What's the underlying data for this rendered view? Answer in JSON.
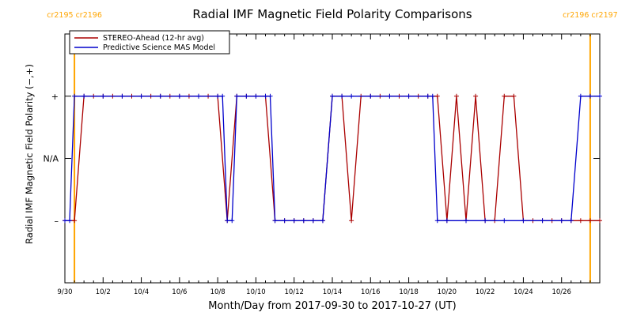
{
  "chart_data": {
    "type": "line",
    "title": "Radial IMF Magnetic Field Polarity Comparisons",
    "xlabel": "Month/Day from 2017-09-30 to 2017-10-27 (UT)",
    "ylabel": "Radial IMF Magnetic Field Polarity (−,+)",
    "xlim": [
      "2017-09-30T00:00",
      "2017-10-28T00:00"
    ],
    "ylim": [
      -2,
      2
    ],
    "grid": false,
    "legend_position": "top-left",
    "x_tick_labels": [
      "9/30",
      "10/2",
      "10/4",
      "10/6",
      "10/8",
      "10/10",
      "10/12",
      "10/14",
      "10/16",
      "10/18",
      "10/20",
      "10/22",
      "10/24",
      "10/26"
    ],
    "x_tick_dates": [
      "2017-09-30",
      "2017-10-02",
      "2017-10-04",
      "2017-10-06",
      "2017-10-08",
      "2017-10-10",
      "2017-10-12",
      "2017-10-14",
      "2017-10-16",
      "2017-10-18",
      "2017-10-20",
      "2017-10-22",
      "2017-10-24",
      "2017-10-26"
    ],
    "y_ticks": [
      {
        "value": 1,
        "label": "+"
      },
      {
        "value": 0,
        "label": "N/A"
      },
      {
        "value": -1,
        "label": "–"
      }
    ],
    "rotation_markers": [
      {
        "date": "2017-09-30T12:00",
        "labels": [
          "cr2195",
          "cr2196"
        ],
        "color": "#FFA500"
      },
      {
        "date": "2017-10-27T12:00",
        "labels": [
          "cr2196",
          "cr2197"
        ],
        "color": "#FFA500"
      }
    ],
    "series": [
      {
        "name": "STEREO-Ahead (12-hr avg)",
        "color": "#AA0000",
        "marker": "+",
        "points": [
          [
            "2017-09-30T00:00",
            -1
          ],
          [
            "2017-09-30T12:00",
            -1
          ],
          [
            "2017-10-01T00:00",
            1
          ],
          [
            "2017-10-01T12:00",
            1
          ],
          [
            "2017-10-02T00:00",
            1
          ],
          [
            "2017-10-02T12:00",
            1
          ],
          [
            "2017-10-03T00:00",
            1
          ],
          [
            "2017-10-03T12:00",
            1
          ],
          [
            "2017-10-04T00:00",
            1
          ],
          [
            "2017-10-04T12:00",
            1
          ],
          [
            "2017-10-05T00:00",
            1
          ],
          [
            "2017-10-05T12:00",
            1
          ],
          [
            "2017-10-06T00:00",
            1
          ],
          [
            "2017-10-06T12:00",
            1
          ],
          [
            "2017-10-07T00:00",
            1
          ],
          [
            "2017-10-07T12:00",
            1
          ],
          [
            "2017-10-08T00:00",
            1
          ],
          [
            "2017-10-08T12:00",
            -1
          ],
          [
            "2017-10-09T00:00",
            1
          ],
          [
            "2017-10-09T12:00",
            1
          ],
          [
            "2017-10-10T00:00",
            1
          ],
          [
            "2017-10-10T12:00",
            1
          ],
          [
            "2017-10-11T00:00",
            -1
          ],
          [
            "2017-10-11T12:00",
            -1
          ],
          [
            "2017-10-12T00:00",
            -1
          ],
          [
            "2017-10-12T12:00",
            -1
          ],
          [
            "2017-10-13T00:00",
            -1
          ],
          [
            "2017-10-13T12:00",
            -1
          ],
          [
            "2017-10-14T00:00",
            1
          ],
          [
            "2017-10-14T12:00",
            1
          ],
          [
            "2017-10-15T00:00",
            -1
          ],
          [
            "2017-10-15T12:00",
            1
          ],
          [
            "2017-10-16T00:00",
            1
          ],
          [
            "2017-10-16T12:00",
            1
          ],
          [
            "2017-10-17T00:00",
            1
          ],
          [
            "2017-10-17T12:00",
            1
          ],
          [
            "2017-10-18T00:00",
            1
          ],
          [
            "2017-10-18T12:00",
            1
          ],
          [
            "2017-10-19T00:00",
            1
          ],
          [
            "2017-10-19T12:00",
            1
          ],
          [
            "2017-10-20T00:00",
            -1
          ],
          [
            "2017-10-20T12:00",
            1
          ],
          [
            "2017-10-21T00:00",
            -1
          ],
          [
            "2017-10-21T12:00",
            1
          ],
          [
            "2017-10-22T00:00",
            -1
          ],
          [
            "2017-10-22T12:00",
            -1
          ],
          [
            "2017-10-23T00:00",
            1
          ],
          [
            "2017-10-23T12:00",
            1
          ],
          [
            "2017-10-24T00:00",
            -1
          ],
          [
            "2017-10-24T12:00",
            -1
          ],
          [
            "2017-10-25T00:00",
            -1
          ],
          [
            "2017-10-25T12:00",
            -1
          ],
          [
            "2017-10-26T00:00",
            -1
          ],
          [
            "2017-10-26T12:00",
            -1
          ],
          [
            "2017-10-27T00:00",
            -1
          ],
          [
            "2017-10-27T12:00",
            -1
          ],
          [
            "2017-10-28T00:00",
            -1
          ]
        ]
      },
      {
        "name": "Predictive Science MAS Model",
        "color": "#0000CC",
        "marker": "+",
        "points": [
          [
            "2017-09-30T00:00",
            -1
          ],
          [
            "2017-09-30T06:00",
            -1
          ],
          [
            "2017-09-30T12:00",
            1
          ],
          [
            "2017-10-01T00:00",
            1
          ],
          [
            "2017-10-02T00:00",
            1
          ],
          [
            "2017-10-03T00:00",
            1
          ],
          [
            "2017-10-04T00:00",
            1
          ],
          [
            "2017-10-05T00:00",
            1
          ],
          [
            "2017-10-06T00:00",
            1
          ],
          [
            "2017-10-07T00:00",
            1
          ],
          [
            "2017-10-08T00:00",
            1
          ],
          [
            "2017-10-08T06:00",
            1
          ],
          [
            "2017-10-08T12:00",
            -1
          ],
          [
            "2017-10-08T18:00",
            -1
          ],
          [
            "2017-10-09T00:00",
            1
          ],
          [
            "2017-10-09T12:00",
            1
          ],
          [
            "2017-10-10T00:00",
            1
          ],
          [
            "2017-10-10T12:00",
            1
          ],
          [
            "2017-10-10T18:00",
            1
          ],
          [
            "2017-10-11T00:00",
            -1
          ],
          [
            "2017-10-11T12:00",
            -1
          ],
          [
            "2017-10-12T00:00",
            -1
          ],
          [
            "2017-10-12T12:00",
            -1
          ],
          [
            "2017-10-13T00:00",
            -1
          ],
          [
            "2017-10-13T12:00",
            -1
          ],
          [
            "2017-10-14T00:00",
            1
          ],
          [
            "2017-10-14T12:00",
            1
          ],
          [
            "2017-10-15T00:00",
            1
          ],
          [
            "2017-10-16T00:00",
            1
          ],
          [
            "2017-10-17T00:00",
            1
          ],
          [
            "2017-10-18T00:00",
            1
          ],
          [
            "2017-10-19T00:00",
            1
          ],
          [
            "2017-10-19T06:00",
            1
          ],
          [
            "2017-10-19T12:00",
            -1
          ],
          [
            "2017-10-20T00:00",
            -1
          ],
          [
            "2017-10-21T00:00",
            -1
          ],
          [
            "2017-10-22T00:00",
            -1
          ],
          [
            "2017-10-23T00:00",
            -1
          ],
          [
            "2017-10-24T00:00",
            -1
          ],
          [
            "2017-10-25T00:00",
            -1
          ],
          [
            "2017-10-26T00:00",
            -1
          ],
          [
            "2017-10-26T12:00",
            -1
          ],
          [
            "2017-10-27T00:00",
            1
          ],
          [
            "2017-10-27T12:00",
            1
          ],
          [
            "2017-10-28T00:00",
            1
          ]
        ]
      }
    ]
  }
}
